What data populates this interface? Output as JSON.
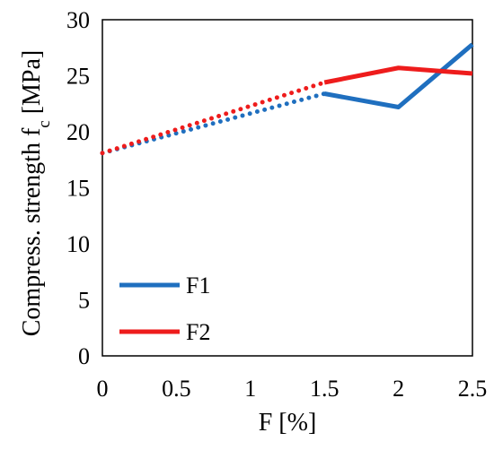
{
  "chart_data": {
    "type": "line",
    "xlabel": "F [%]",
    "ylabel": "Compress. strength f",
    "ylabel_subscript": "c",
    "ylabel_suffix": " [MPa]",
    "xlim": [
      0,
      2.5
    ],
    "ylim": [
      0,
      30
    ],
    "x_ticks": [
      0,
      0.5,
      1,
      1.5,
      2,
      2.5
    ],
    "x_tick_labels": [
      "0",
      "0.5",
      "1",
      "1.5",
      "2",
      "2.5"
    ],
    "y_ticks": [
      0,
      5,
      10,
      15,
      20,
      25,
      30
    ],
    "y_tick_labels": [
      "0",
      "5",
      "10",
      "15",
      "20",
      "25",
      "30"
    ],
    "grid": false,
    "legend_position": "bottom-left",
    "series": [
      {
        "name": "F1",
        "color": "#1f6fbf",
        "dotted_x": [
          0,
          1.5
        ],
        "dotted_y": [
          18.1,
          23.4
        ],
        "solid_x": [
          1.5,
          2,
          2.5
        ],
        "solid_y": [
          23.4,
          22.2,
          27.8
        ]
      },
      {
        "name": "F2",
        "color": "#ee1c1c",
        "dotted_x": [
          0,
          1.5
        ],
        "dotted_y": [
          18.1,
          24.4
        ],
        "solid_x": [
          1.5,
          2,
          2.5
        ],
        "solid_y": [
          24.4,
          25.7,
          25.2
        ]
      }
    ]
  }
}
